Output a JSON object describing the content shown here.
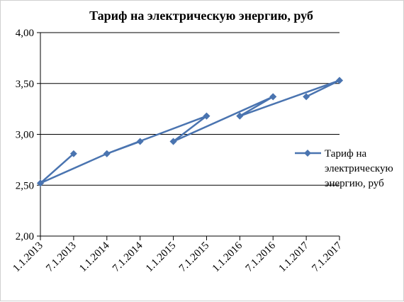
{
  "chart_data": {
    "type": "line",
    "title": "Тариф на электрическую энергию, руб",
    "xlabel": "",
    "ylabel": "",
    "categories": [
      "1.1.2013",
      "7.1.2013",
      "1.1.2014",
      "7.1.2014",
      "1.1.2015",
      "7.1.2015",
      "1.1.2016",
      "7.1.2016",
      "1.1.2017",
      "7.1.2017"
    ],
    "ylim": [
      2.0,
      4.0
    ],
    "ytick_labels": [
      "2,00",
      "2,50",
      "3,00",
      "3,50",
      "4,00"
    ],
    "yticks": [
      2.0,
      2.5,
      3.0,
      3.5,
      4.0
    ],
    "grid": true,
    "legend_position": "right",
    "series": [
      {
        "name": "Тариф на электрическую энергию, руб",
        "legend_lines": [
          "Тариф на",
          "электрическую",
          "энергию, руб"
        ],
        "color": "#4a74b0",
        "marker": "diamond",
        "points": [
          {
            "x": "1.1.2013",
            "y": 2.52
          },
          {
            "x": "7.1.2013",
            "y": 2.81
          },
          {
            "x": "1.1.2013",
            "y": 2.52
          },
          {
            "x": "1.1.2014",
            "y": 2.81
          },
          {
            "x": "7.1.2014",
            "y": 2.93
          },
          {
            "x": "1.1.2014",
            "y": 2.81
          },
          {
            "x": "7.1.2015",
            "y": 3.18
          },
          {
            "x": "1.1.2015",
            "y": 2.93
          },
          {
            "x": "7.1.2015",
            "y": 3.18
          },
          {
            "x": "1.1.2015",
            "y": 2.93
          },
          {
            "x": "7.1.2016",
            "y": 3.37
          },
          {
            "x": "1.1.2016",
            "y": 3.18
          },
          {
            "x": "7.1.2016",
            "y": 3.37
          },
          {
            "x": "1.1.2016",
            "y": 3.18
          },
          {
            "x": "7.1.2017",
            "y": 3.53
          },
          {
            "x": "1.1.2017",
            "y": 3.37
          },
          {
            "x": "7.1.2017",
            "y": 3.53
          }
        ]
      }
    ]
  }
}
